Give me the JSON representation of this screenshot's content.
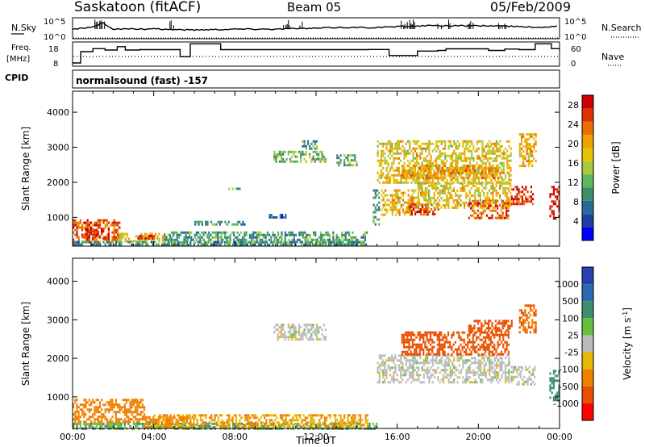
{
  "header": {
    "station": "Saskatoon (fitACF)",
    "beam": "Beam 05",
    "date": "05/Feb/2009"
  },
  "noise_panel": {
    "left_label": "N.Sky",
    "right_label": "N.Search",
    "left_ticks": [
      "10^5",
      "10^0"
    ],
    "right_ticks": [
      "10^5",
      "10^0"
    ]
  },
  "freq_panel": {
    "left_label_1": "Freq.",
    "left_label_2": "[MHz]",
    "right_label": "Nave",
    "left_ticks": [
      "18",
      "8"
    ],
    "right_ticks": [
      "60",
      "0"
    ]
  },
  "cpid": {
    "label": "CPID",
    "value": "normalsound (fast) -157"
  },
  "colors": {
    "power": [
      "#0000ff",
      "#1f3fa0",
      "#2a6a9a",
      "#3c8f6e",
      "#5cb85c",
      "#a8c93b",
      "#e6c200",
      "#f0a000",
      "#e87000",
      "#e03000",
      "#cc0000"
    ],
    "velocity": [
      "#2a3fb0",
      "#2a6ab0",
      "#3c8f6e",
      "#66c040",
      "#bbbbbb",
      "#e8b800",
      "#f08000",
      "#e85000",
      "#ff0000"
    ]
  },
  "chart_data": [
    {
      "type": "heatmap",
      "name": "power",
      "xlabel": "",
      "ylabel": "Slant Range [km]",
      "xlim": [
        0,
        24
      ],
      "ylim": [
        180,
        4600
      ],
      "yticks": [
        "1000",
        "2000",
        "3000",
        "4000"
      ],
      "colorbar": {
        "label": "Power [dB]",
        "ticks": [
          "4",
          "8",
          "12",
          "16",
          "20",
          "24",
          "28"
        ],
        "range": [
          0,
          30
        ]
      },
      "regions": [
        {
          "t0": 0.0,
          "t1": 2.3,
          "r0": 300,
          "r1": 950,
          "value": 26
        },
        {
          "t0": 0.6,
          "t1": 1.8,
          "r0": 400,
          "r1": 700,
          "value": 30
        },
        {
          "t0": 2.3,
          "t1": 4.5,
          "r0": 300,
          "r1": 560,
          "value": 18
        },
        {
          "t0": 3.2,
          "t1": 4.0,
          "r0": 400,
          "r1": 500,
          "value": 28
        },
        {
          "t0": 0.0,
          "t1": 14.5,
          "r0": 200,
          "r1": 330,
          "value": 8
        },
        {
          "t0": 4.5,
          "t1": 14.5,
          "r0": 220,
          "r1": 600,
          "value": 10
        },
        {
          "t0": 6.0,
          "t1": 8.5,
          "r0": 800,
          "r1": 900,
          "value": 10
        },
        {
          "t0": 7.5,
          "t1": 8.3,
          "r0": 1800,
          "r1": 1850,
          "value": 12
        },
        {
          "t0": 9.5,
          "t1": 10.5,
          "r0": 1000,
          "r1": 1100,
          "value": 4
        },
        {
          "t0": 9.9,
          "t1": 12.5,
          "r0": 2600,
          "r1": 2900,
          "value": 12
        },
        {
          "t0": 11.3,
          "t1": 12.0,
          "r0": 2950,
          "r1": 3200,
          "value": 10
        },
        {
          "t0": 13.0,
          "t1": 14.0,
          "r0": 2500,
          "r1": 2800,
          "value": 12
        },
        {
          "t0": 15.0,
          "t1": 21.6,
          "r0": 2000,
          "r1": 3200,
          "value": 18
        },
        {
          "t0": 16.2,
          "t1": 21.0,
          "r0": 2100,
          "r1": 2500,
          "value": 22
        },
        {
          "t0": 15.2,
          "t1": 17.5,
          "r0": 1100,
          "r1": 1800,
          "value": 20
        },
        {
          "t0": 16.5,
          "t1": 18.0,
          "r0": 1100,
          "r1": 1400,
          "value": 28
        },
        {
          "t0": 17.0,
          "t1": 21.6,
          "r0": 1300,
          "r1": 2000,
          "value": 18
        },
        {
          "t0": 19.5,
          "t1": 21.5,
          "r0": 1000,
          "r1": 1500,
          "value": 26
        },
        {
          "t0": 21.6,
          "t1": 22.7,
          "r0": 1400,
          "r1": 1900,
          "value": 28
        },
        {
          "t0": 22.0,
          "t1": 22.8,
          "r0": 2500,
          "r1": 3400,
          "value": 20
        },
        {
          "t0": 23.5,
          "t1": 24.0,
          "r0": 1000,
          "r1": 1900,
          "value": 30
        },
        {
          "t0": 14.8,
          "t1": 15.1,
          "r0": 800,
          "r1": 1800,
          "value": 10
        }
      ]
    },
    {
      "type": "heatmap",
      "name": "velocity",
      "xlabel": "Time UT",
      "ylabel": "Slant Range [km]",
      "xlim": [
        0,
        24
      ],
      "ylim": [
        180,
        4600
      ],
      "xticks": [
        "00:00",
        "04:00",
        "08:00",
        "12:00",
        "16:00",
        "20:00",
        "00:00"
      ],
      "yticks": [
        "1000",
        "2000",
        "3000",
        "4000"
      ],
      "colorbar": {
        "label": "Velocity [m s^-1]",
        "ticks": [
          "1000",
          "500",
          "100",
          "25",
          "-25",
          "-100",
          "-500",
          "-1000"
        ]
      },
      "regions": [
        {
          "t0": 0.0,
          "t1": 3.5,
          "r0": 300,
          "r1": 950,
          "value": -150
        },
        {
          "t0": 3.5,
          "t1": 6.0,
          "r0": 200,
          "r1": 500,
          "value": -100
        },
        {
          "t0": 0.0,
          "t1": 15.0,
          "r0": 200,
          "r1": 330,
          "value": 60
        },
        {
          "t0": 4.0,
          "t1": 14.5,
          "r0": 220,
          "r1": 550,
          "value": -60
        },
        {
          "t0": 9.9,
          "t1": 12.5,
          "r0": 2500,
          "r1": 2900,
          "value": 0
        },
        {
          "t0": 15.0,
          "t1": 21.5,
          "r0": 1400,
          "r1": 2100,
          "value": 0
        },
        {
          "t0": 16.2,
          "t1": 21.5,
          "r0": 2100,
          "r1": 2700,
          "value": -400
        },
        {
          "t0": 19.5,
          "t1": 21.6,
          "r0": 2700,
          "r1": 3000,
          "value": -600
        },
        {
          "t0": 21.6,
          "t1": 22.8,
          "r0": 1300,
          "r1": 1800,
          "value": 0
        },
        {
          "t0": 22.0,
          "t1": 22.8,
          "r0": 2700,
          "r1": 3400,
          "value": -300
        },
        {
          "t0": 23.5,
          "t1": 24.0,
          "r0": 900,
          "r1": 1700,
          "value": 200
        }
      ]
    },
    {
      "type": "line",
      "name": "noise",
      "x": [
        0,
        1,
        1.5,
        2,
        3,
        4,
        6,
        8,
        10,
        12,
        13,
        14,
        15,
        16,
        17,
        18,
        19,
        20,
        21,
        22,
        23,
        24
      ],
      "series": [
        {
          "values": [
            0.6,
            0.7,
            1.0,
            0.6,
            0.6,
            0.6,
            0.55,
            0.6,
            0.6,
            0.65,
            0.7,
            0.7,
            0.7,
            0.75,
            0.8,
            0.8,
            0.8,
            0.8,
            0.8,
            0.75,
            0.7,
            0.8
          ]
        }
      ]
    },
    {
      "type": "line",
      "name": "frequency",
      "x": [
        0,
        0.4,
        1.0,
        1.6,
        2.2,
        2.6,
        3.3,
        4.0,
        5.3,
        5.8,
        6.2,
        7.3,
        9.0,
        13.6,
        14.6,
        15.6,
        17.0,
        18.0,
        18.4,
        20.5,
        21.3,
        22.0,
        22.8,
        23.6,
        24.0
      ],
      "series": [
        {
          "values": [
            8.6,
            14.2,
            15.7,
            15.0,
            16.7,
            15.0,
            15.2,
            15.2,
            11.7,
            18.1,
            18.1,
            15.2,
            15.2,
            15.2,
            15.3,
            12.3,
            14.5,
            14.8,
            15.6,
            14.8,
            15.5,
            15.2,
            18.1,
            15.7,
            15.3
          ]
        }
      ]
    }
  ]
}
